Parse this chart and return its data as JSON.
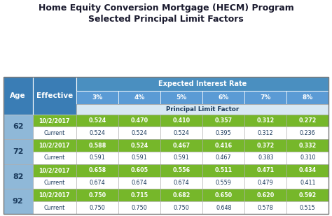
{
  "title": "Home Equity Conversion Mortgage (HECM) Program\nSelected Principal Limit Factors",
  "header1": "Expected Interest Rate",
  "header2": "Principal Limit Factor",
  "col_header_age": "Age",
  "col_header_eff": "Effective",
  "rate_labels": [
    "3%",
    "4%",
    "5%",
    "6%",
    "7%",
    "8%"
  ],
  "ages": [
    "62",
    "72",
    "82",
    "92"
  ],
  "rows": [
    {
      "age": "62",
      "date": "10/2/2017",
      "values": [
        0.524,
        0.47,
        0.41,
        0.357,
        0.312,
        0.272
      ]
    },
    {
      "age": "62",
      "date": "Current",
      "values": [
        0.524,
        0.524,
        0.524,
        0.395,
        0.312,
        0.236
      ]
    },
    {
      "age": "72",
      "date": "10/2/2017",
      "values": [
        0.588,
        0.524,
        0.467,
        0.416,
        0.372,
        0.332
      ]
    },
    {
      "age": "72",
      "date": "Current",
      "values": [
        0.591,
        0.591,
        0.591,
        0.467,
        0.383,
        0.31
      ]
    },
    {
      "age": "82",
      "date": "10/2/2017",
      "values": [
        0.658,
        0.605,
        0.556,
        0.511,
        0.471,
        0.434
      ]
    },
    {
      "age": "82",
      "date": "Current",
      "values": [
        0.674,
        0.674,
        0.674,
        0.559,
        0.479,
        0.411
      ]
    },
    {
      "age": "92",
      "date": "10/2/2017",
      "values": [
        0.75,
        0.715,
        0.682,
        0.65,
        0.62,
        0.592
      ]
    },
    {
      "age": "92",
      "date": "Current",
      "values": [
        0.75,
        0.75,
        0.75,
        0.648,
        0.578,
        0.515
      ]
    }
  ],
  "color_header_dark": "#3A7DB5",
  "color_header_mid": "#5B9BD5",
  "color_header_light": "#7BAFD4",
  "color_header_banner": "#4A8FC0",
  "color_green_row": "#76B72A",
  "color_white_row": "#FFFFFF",
  "color_age_bg": "#8FB8D8",
  "color_border": "#AAAAAA",
  "color_title": "#1A1A2E",
  "color_white_text": "#FFFFFF",
  "color_dark_text": "#1A3A5C",
  "color_plf_bg": "#D8E8F3",
  "bg_color": "#FFFFFF"
}
